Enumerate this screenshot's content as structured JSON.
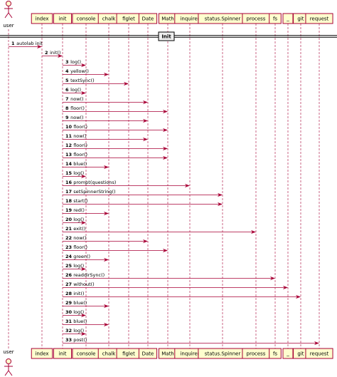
{
  "diagram": {
    "type": "sequence",
    "divider": "Init",
    "participants": [
      {
        "id": "user",
        "label": "user",
        "kind": "actor"
      },
      {
        "id": "index",
        "label": "index",
        "kind": "box"
      },
      {
        "id": "init",
        "label": "init",
        "kind": "box"
      },
      {
        "id": "console",
        "label": "console",
        "kind": "box"
      },
      {
        "id": "chalk",
        "label": "chalk",
        "kind": "box"
      },
      {
        "id": "figlet",
        "label": "figlet",
        "kind": "box"
      },
      {
        "id": "Date",
        "label": "Date",
        "kind": "box"
      },
      {
        "id": "Math",
        "label": "Math",
        "kind": "box"
      },
      {
        "id": "inquirer",
        "label": "inquirer",
        "kind": "box"
      },
      {
        "id": "status",
        "label": "status.Spinner",
        "kind": "box"
      },
      {
        "id": "process",
        "label": "process",
        "kind": "box"
      },
      {
        "id": "fs",
        "label": "fs",
        "kind": "box"
      },
      {
        "id": "_",
        "label": "_",
        "kind": "box"
      },
      {
        "id": "git",
        "label": "git",
        "kind": "box"
      },
      {
        "id": "request",
        "label": "request",
        "kind": "box"
      }
    ],
    "messages": [
      {
        "num": "1",
        "from": "user",
        "to": "index",
        "label": "autolab init"
      },
      {
        "num": "2",
        "from": "index",
        "to": "init",
        "label": "init()"
      },
      {
        "num": "3",
        "from": "init",
        "to": "console",
        "label": "log()"
      },
      {
        "num": "4",
        "from": "init",
        "to": "chalk",
        "label": "yellow()"
      },
      {
        "num": "5",
        "from": "init",
        "to": "figlet",
        "label": "textSync()"
      },
      {
        "num": "6",
        "from": "init",
        "to": "console",
        "label": "log()"
      },
      {
        "num": "7",
        "from": "init",
        "to": "Date",
        "label": "now()"
      },
      {
        "num": "8",
        "from": "init",
        "to": "Math",
        "label": "floor()"
      },
      {
        "num": "9",
        "from": "init",
        "to": "Date",
        "label": "now()"
      },
      {
        "num": "10",
        "from": "init",
        "to": "Math",
        "label": "floor()"
      },
      {
        "num": "11",
        "from": "init",
        "to": "Date",
        "label": "now()"
      },
      {
        "num": "12",
        "from": "init",
        "to": "Math",
        "label": "floor()"
      },
      {
        "num": "13",
        "from": "init",
        "to": "Math",
        "label": "floor()"
      },
      {
        "num": "14",
        "from": "init",
        "to": "chalk",
        "label": "blue()"
      },
      {
        "num": "15",
        "from": "init",
        "to": "console",
        "label": "log()"
      },
      {
        "num": "16",
        "from": "init",
        "to": "inquirer",
        "label": "prompt(questions)"
      },
      {
        "num": "17",
        "from": "init",
        "to": "status",
        "label": "setSpinnerString()"
      },
      {
        "num": "18",
        "from": "init",
        "to": "status",
        "label": "start()"
      },
      {
        "num": "19",
        "from": "init",
        "to": "chalk",
        "label": "red()"
      },
      {
        "num": "20",
        "from": "init",
        "to": "console",
        "label": "log()"
      },
      {
        "num": "21",
        "from": "init",
        "to": "process",
        "label": "exit()"
      },
      {
        "num": "22",
        "from": "init",
        "to": "Date",
        "label": "now()"
      },
      {
        "num": "23",
        "from": "init",
        "to": "Math",
        "label": "floor()"
      },
      {
        "num": "24",
        "from": "init",
        "to": "chalk",
        "label": "green()"
      },
      {
        "num": "25",
        "from": "init",
        "to": "console",
        "label": "log()"
      },
      {
        "num": "26",
        "from": "init",
        "to": "fs",
        "label": "readdirSync()"
      },
      {
        "num": "27",
        "from": "init",
        "to": "_",
        "label": "without()"
      },
      {
        "num": "28",
        "from": "init",
        "to": "git",
        "label": "init()"
      },
      {
        "num": "29",
        "from": "init",
        "to": "chalk",
        "label": "blue()"
      },
      {
        "num": "30",
        "from": "init",
        "to": "console",
        "label": "log()"
      },
      {
        "num": "31",
        "from": "init",
        "to": "chalk",
        "label": "blue()"
      },
      {
        "num": "32",
        "from": "init",
        "to": "console",
        "label": "log()"
      },
      {
        "num": "33",
        "from": "init",
        "to": "request",
        "label": "post()"
      }
    ]
  },
  "colors": {
    "line": "#a80036",
    "box_fill": "#fefece",
    "divider_fill": "#eeeeee"
  }
}
